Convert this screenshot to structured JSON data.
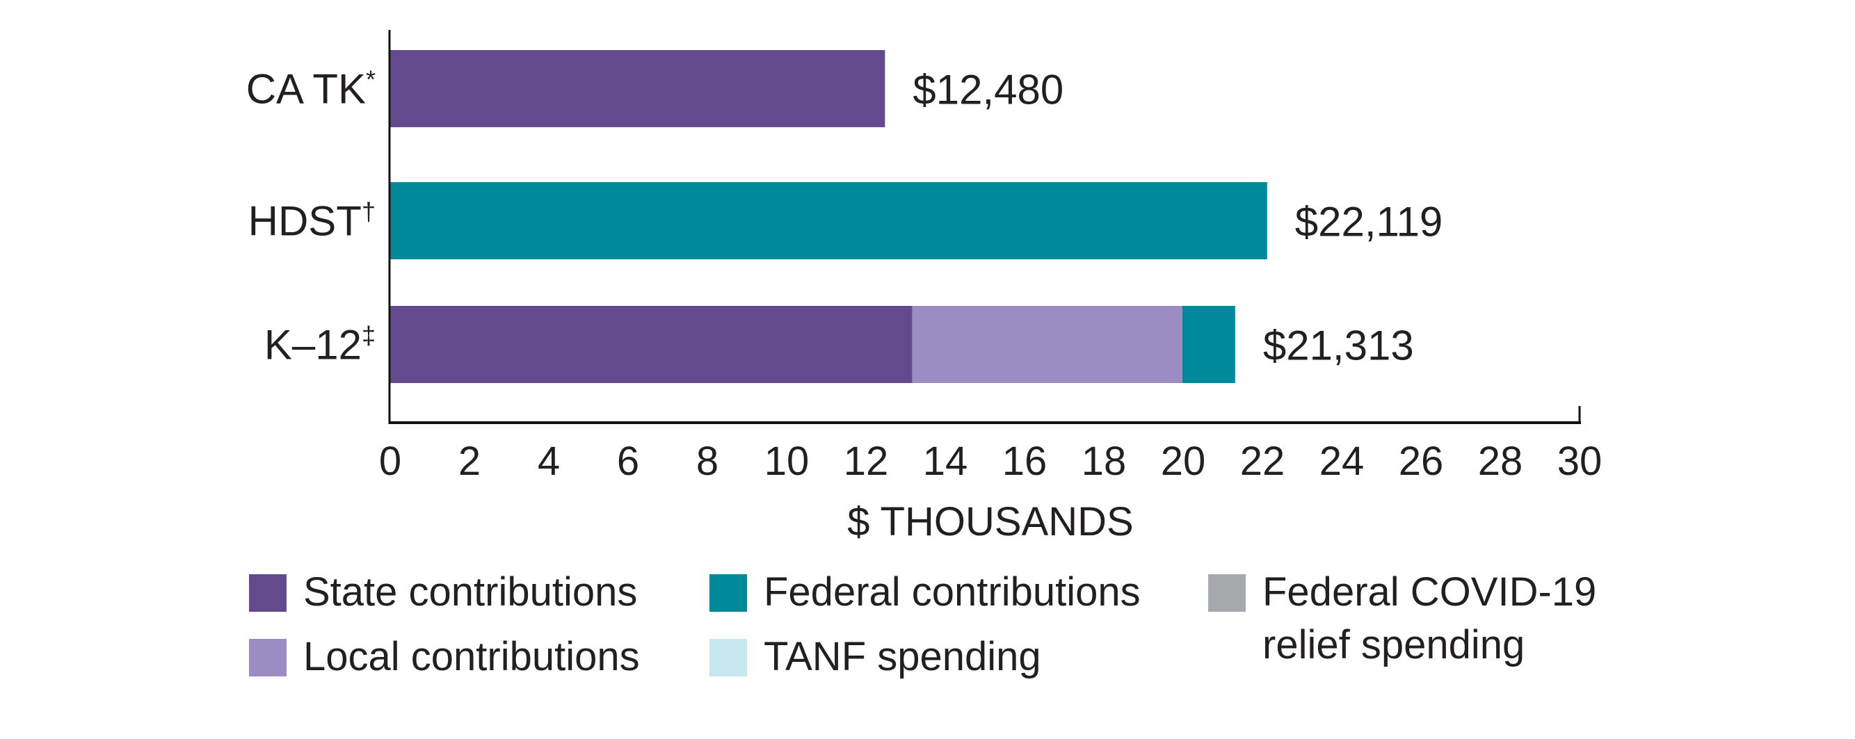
{
  "chart_data": {
    "type": "bar",
    "orientation": "horizontal",
    "stacked": true,
    "title": "",
    "xlabel": "$ THOUSANDS",
    "ylabel": "",
    "xlim": [
      0,
      30
    ],
    "x_ticks": [
      0,
      2,
      4,
      6,
      8,
      10,
      12,
      14,
      16,
      18,
      20,
      22,
      24,
      26,
      28,
      30
    ],
    "grid": false,
    "categories": [
      {
        "name": "CA TK",
        "mark": "*"
      },
      {
        "name": "HDST",
        "mark": "†"
      },
      {
        "name": "K–12",
        "mark": "‡"
      }
    ],
    "series": [
      {
        "name": "State contributions",
        "color": "#634a8e",
        "values": [
          12.48,
          0,
          13.17
        ]
      },
      {
        "name": "Local contributions",
        "color": "#9b8dc3",
        "values": [
          0,
          0,
          6.81
        ]
      },
      {
        "name": "Federal contributions",
        "color": "#00899b",
        "values": [
          0,
          22.119,
          1.333
        ]
      },
      {
        "name": "TANF spending",
        "color": "#c7e7ee",
        "values": [
          0,
          0,
          0
        ]
      },
      {
        "name": "Federal COVID-19 relief spending",
        "color": "#a7a9ac",
        "values": [
          0,
          0,
          0
        ]
      }
    ],
    "totals": [
      12480,
      22119,
      21313
    ],
    "total_labels": [
      "$12,480",
      "$22,119",
      "$21,313"
    ],
    "legend_placement": "bottom"
  },
  "legend": [
    {
      "label": "State contributions",
      "color": "#634a8e"
    },
    {
      "label": "Federal contributions",
      "color": "#00899b"
    },
    {
      "label": "Federal COVID-19 relief spending",
      "color": "#a7a9ac"
    },
    {
      "label": "Local contributions",
      "color": "#9b8dc3"
    },
    {
      "label": "TANF spending",
      "color": "#c7e7ee"
    }
  ]
}
